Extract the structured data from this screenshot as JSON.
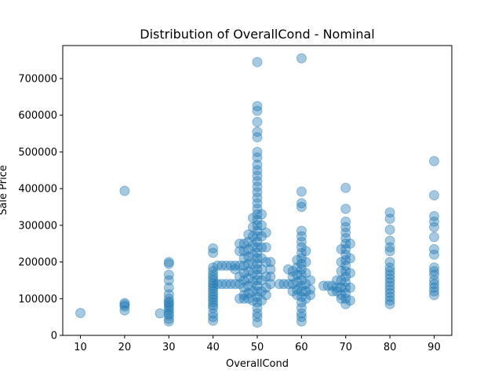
{
  "chart_data": {
    "type": "scatter",
    "title": "Distribution of OverallCond - Nominal",
    "xlabel": "OverallCond",
    "ylabel": "Sale Price",
    "xlim": [
      6,
      94
    ],
    "ylim": [
      0,
      790000
    ],
    "xticks": [
      10,
      20,
      30,
      40,
      50,
      60,
      70,
      80,
      90
    ],
    "yticks": [
      0,
      100000,
      200000,
      300000,
      400000,
      500000,
      600000,
      700000
    ],
    "grid": false,
    "legend": "none",
    "marker_color": "#1f77b4",
    "marker_alpha": 0.4,
    "series": [
      {
        "points": [
          [
            10,
            61000
          ],
          [
            20,
            394000
          ],
          [
            20,
            88000
          ],
          [
            20,
            84000
          ],
          [
            20,
            79000
          ],
          [
            20,
            68000
          ],
          [
            30,
            200000
          ],
          [
            30,
            195000
          ],
          [
            30,
            165000
          ],
          [
            30,
            150000
          ],
          [
            30,
            130000
          ],
          [
            30,
            112000
          ],
          [
            30,
            100000
          ],
          [
            30,
            92000
          ],
          [
            30,
            88000
          ],
          [
            30,
            82000
          ],
          [
            30,
            75000
          ],
          [
            30,
            68000
          ],
          [
            30,
            60000
          ],
          [
            30,
            55000
          ],
          [
            30,
            45000
          ],
          [
            30,
            38000
          ],
          [
            28,
            60000
          ],
          [
            40,
            237000
          ],
          [
            40,
            225000
          ],
          [
            40,
            185000
          ],
          [
            40,
            175000
          ],
          [
            40,
            165000
          ],
          [
            40,
            158000
          ],
          [
            40,
            150000
          ],
          [
            40,
            142000
          ],
          [
            40,
            135000
          ],
          [
            40,
            128000
          ],
          [
            40,
            120000
          ],
          [
            40,
            112000
          ],
          [
            40,
            105000
          ],
          [
            40,
            98000
          ],
          [
            40,
            90000
          ],
          [
            40,
            82000
          ],
          [
            40,
            75000
          ],
          [
            40,
            60000
          ],
          [
            40,
            50000
          ],
          [
            40,
            40000
          ],
          [
            41,
            190000
          ],
          [
            41,
            140000
          ],
          [
            42,
            190000
          ],
          [
            42,
            140000
          ],
          [
            43,
            190000
          ],
          [
            43,
            140000
          ],
          [
            44,
            190000
          ],
          [
            44,
            140000
          ],
          [
            45,
            190000
          ],
          [
            45,
            180000
          ],
          [
            45,
            140000
          ],
          [
            46,
            250000
          ],
          [
            46,
            230000
          ],
          [
            46,
            190000
          ],
          [
            46,
            160000
          ],
          [
            46,
            140000
          ],
          [
            46,
            100000
          ],
          [
            47,
            250000
          ],
          [
            47,
            230000
          ],
          [
            47,
            210000
          ],
          [
            47,
            190000
          ],
          [
            47,
            170000
          ],
          [
            47,
            150000
          ],
          [
            47,
            130000
          ],
          [
            47,
            110000
          ],
          [
            47,
            100000
          ],
          [
            48,
            275000
          ],
          [
            48,
            255000
          ],
          [
            48,
            235000
          ],
          [
            48,
            215000
          ],
          [
            48,
            195000
          ],
          [
            48,
            175000
          ],
          [
            48,
            155000
          ],
          [
            48,
            135000
          ],
          [
            48,
            115000
          ],
          [
            48,
            100000
          ],
          [
            49,
            320000
          ],
          [
            49,
            295000
          ],
          [
            49,
            270000
          ],
          [
            49,
            245000
          ],
          [
            49,
            220000
          ],
          [
            49,
            195000
          ],
          [
            49,
            170000
          ],
          [
            49,
            145000
          ],
          [
            49,
            120000
          ],
          [
            49,
            95000
          ],
          [
            50,
            745000
          ],
          [
            50,
            625000
          ],
          [
            50,
            612000
          ],
          [
            50,
            582000
          ],
          [
            50,
            555000
          ],
          [
            50,
            540000
          ],
          [
            50,
            500000
          ],
          [
            50,
            485000
          ],
          [
            50,
            465000
          ],
          [
            50,
            450000
          ],
          [
            50,
            435000
          ],
          [
            50,
            420000
          ],
          [
            50,
            405000
          ],
          [
            50,
            390000
          ],
          [
            50,
            375000
          ],
          [
            50,
            360000
          ],
          [
            50,
            345000
          ],
          [
            50,
            330000
          ],
          [
            50,
            315000
          ],
          [
            50,
            300000
          ],
          [
            50,
            285000
          ],
          [
            50,
            270000
          ],
          [
            50,
            255000
          ],
          [
            50,
            240000
          ],
          [
            50,
            225000
          ],
          [
            50,
            210000
          ],
          [
            50,
            195000
          ],
          [
            50,
            180000
          ],
          [
            50,
            165000
          ],
          [
            50,
            150000
          ],
          [
            50,
            135000
          ],
          [
            50,
            120000
          ],
          [
            50,
            105000
          ],
          [
            50,
            90000
          ],
          [
            50,
            75000
          ],
          [
            50,
            60000
          ],
          [
            50,
            50000
          ],
          [
            50,
            35000
          ],
          [
            51,
            330000
          ],
          [
            51,
            300000
          ],
          [
            51,
            270000
          ],
          [
            51,
            240000
          ],
          [
            51,
            210000
          ],
          [
            51,
            180000
          ],
          [
            51,
            150000
          ],
          [
            51,
            120000
          ],
          [
            51,
            95000
          ],
          [
            52,
            280000
          ],
          [
            52,
            240000
          ],
          [
            52,
            200000
          ],
          [
            52,
            160000
          ],
          [
            52,
            130000
          ],
          [
            52,
            110000
          ],
          [
            53,
            200000
          ],
          [
            53,
            180000
          ],
          [
            53,
            160000
          ],
          [
            53,
            140000
          ],
          [
            55,
            140000
          ],
          [
            56,
            140000
          ],
          [
            57,
            140000
          ],
          [
            57,
            180000
          ],
          [
            58,
            175000
          ],
          [
            58,
            160000
          ],
          [
            58,
            140000
          ],
          [
            58,
            120000
          ],
          [
            59,
            205000
          ],
          [
            59,
            185000
          ],
          [
            59,
            165000
          ],
          [
            59,
            145000
          ],
          [
            59,
            125000
          ],
          [
            59,
            110000
          ],
          [
            60,
            755000
          ],
          [
            60,
            392000
          ],
          [
            60,
            360000
          ],
          [
            60,
            350000
          ],
          [
            60,
            285000
          ],
          [
            60,
            270000
          ],
          [
            60,
            255000
          ],
          [
            60,
            240000
          ],
          [
            60,
            225000
          ],
          [
            60,
            210000
          ],
          [
            60,
            195000
          ],
          [
            60,
            180000
          ],
          [
            60,
            165000
          ],
          [
            60,
            150000
          ],
          [
            60,
            135000
          ],
          [
            60,
            120000
          ],
          [
            60,
            105000
          ],
          [
            60,
            90000
          ],
          [
            60,
            75000
          ],
          [
            60,
            60000
          ],
          [
            60,
            50000
          ],
          [
            60,
            38000
          ],
          [
            61,
            230000
          ],
          [
            61,
            200000
          ],
          [
            61,
            170000
          ],
          [
            61,
            140000
          ],
          [
            61,
            120000
          ],
          [
            61,
            100000
          ],
          [
            62,
            150000
          ],
          [
            62,
            125000
          ],
          [
            62,
            110000
          ],
          [
            65,
            135000
          ],
          [
            66,
            135000
          ],
          [
            67,
            135000
          ],
          [
            67,
            120000
          ],
          [
            68,
            150000
          ],
          [
            68,
            130000
          ],
          [
            68,
            120000
          ],
          [
            69,
            235000
          ],
          [
            69,
            200000
          ],
          [
            69,
            175000
          ],
          [
            69,
            150000
          ],
          [
            69,
            130000
          ],
          [
            69,
            110000
          ],
          [
            69,
            100000
          ],
          [
            70,
            402000
          ],
          [
            70,
            345000
          ],
          [
            70,
            310000
          ],
          [
            70,
            295000
          ],
          [
            70,
            280000
          ],
          [
            70,
            265000
          ],
          [
            70,
            250000
          ],
          [
            70,
            235000
          ],
          [
            70,
            220000
          ],
          [
            70,
            205000
          ],
          [
            70,
            190000
          ],
          [
            70,
            175000
          ],
          [
            70,
            160000
          ],
          [
            70,
            145000
          ],
          [
            70,
            130000
          ],
          [
            70,
            115000
          ],
          [
            70,
            100000
          ],
          [
            70,
            85000
          ],
          [
            71,
            250000
          ],
          [
            71,
            210000
          ],
          [
            71,
            170000
          ],
          [
            71,
            130000
          ],
          [
            71,
            95000
          ],
          [
            80,
            335000
          ],
          [
            80,
            318000
          ],
          [
            80,
            288000
          ],
          [
            80,
            258000
          ],
          [
            80,
            240000
          ],
          [
            80,
            230000
          ],
          [
            80,
            200000
          ],
          [
            80,
            185000
          ],
          [
            80,
            175000
          ],
          [
            80,
            165000
          ],
          [
            80,
            155000
          ],
          [
            80,
            145000
          ],
          [
            80,
            135000
          ],
          [
            80,
            125000
          ],
          [
            80,
            115000
          ],
          [
            80,
            105000
          ],
          [
            80,
            95000
          ],
          [
            80,
            85000
          ],
          [
            90,
            475000
          ],
          [
            90,
            382000
          ],
          [
            90,
            325000
          ],
          [
            90,
            310000
          ],
          [
            90,
            295000
          ],
          [
            90,
            268000
          ],
          [
            90,
            235000
          ],
          [
            90,
            220000
          ],
          [
            90,
            185000
          ],
          [
            90,
            175000
          ],
          [
            90,
            165000
          ],
          [
            90,
            150000
          ],
          [
            90,
            140000
          ],
          [
            90,
            130000
          ],
          [
            90,
            120000
          ],
          [
            90,
            110000
          ]
        ]
      }
    ]
  }
}
